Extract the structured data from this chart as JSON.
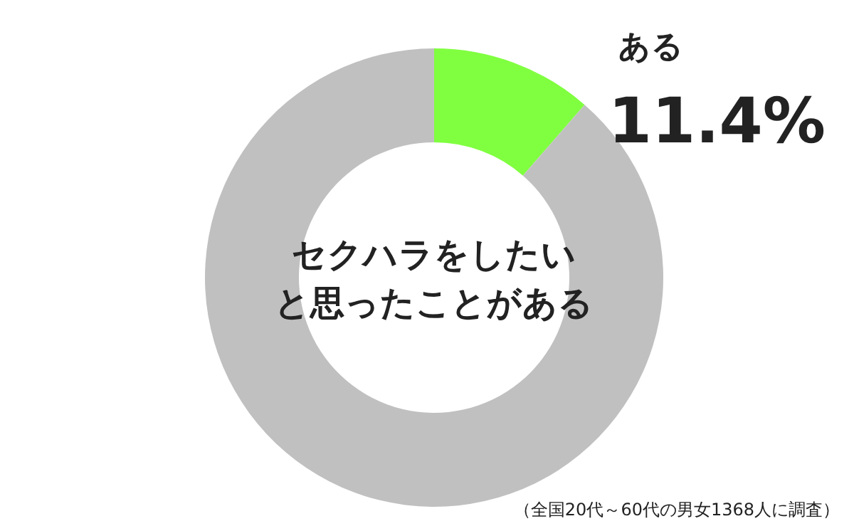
{
  "chart_data": {
    "type": "donut",
    "title": "セクハラをしたいと思ったことがある",
    "categories": [
      "ある",
      null
    ],
    "values": [
      11.4,
      88.6
    ],
    "colors": [
      "#80ff40",
      "#c0c0c0"
    ],
    "value_labels": [
      "11.4%",
      null
    ],
    "legend": false,
    "annotations": [
      "（全国20代～60代の男女1368人に調査）"
    ]
  }
}
